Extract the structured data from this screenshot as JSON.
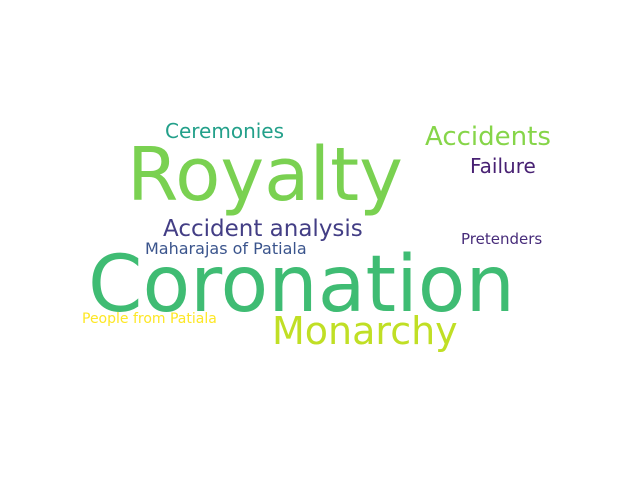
{
  "words": [
    {
      "text": "Royalty",
      "color": "#7ad151"
    },
    {
      "text": "Coronation",
      "color": "#3fbc73"
    },
    {
      "text": "Monarchy",
      "color": "#c0df25"
    },
    {
      "text": "Accidents",
      "color": "#86d549"
    },
    {
      "text": "Ceremonies",
      "color": "#23a08a"
    },
    {
      "text": "Failure",
      "color": "#482173"
    },
    {
      "text": "Accident analysis",
      "color": "#433e85"
    },
    {
      "text": "Maharajas of Patiala",
      "color": "#3a548c"
    },
    {
      "text": "Pretenders",
      "color": "#472c7a"
    },
    {
      "text": "People from Patiala",
      "color": "#fde725"
    }
  ]
}
